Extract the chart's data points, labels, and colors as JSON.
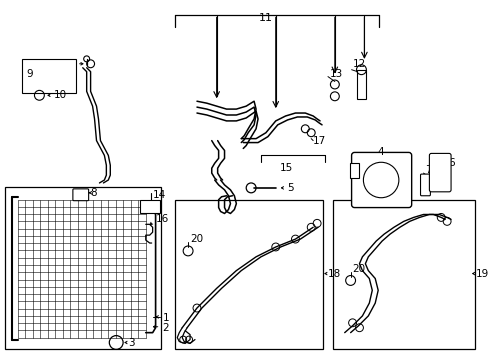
{
  "bg": "#ffffff",
  "lc": "#000000",
  "tc": "#000000",
  "figsize": [
    4.89,
    3.6
  ],
  "dpi": 100
}
